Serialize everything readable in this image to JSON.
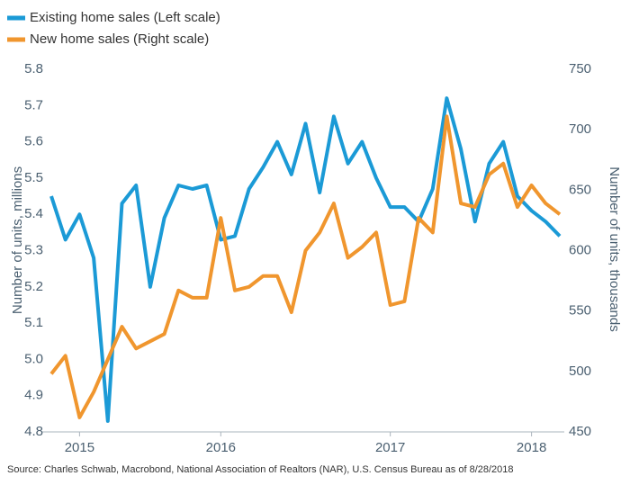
{
  "chart_data": {
    "type": "line",
    "legend_position": "top-left",
    "categories": [
      null,
      null,
      "2015",
      null,
      null,
      null,
      null,
      null,
      null,
      null,
      null,
      null,
      "2016",
      null,
      null,
      null,
      null,
      null,
      null,
      null,
      null,
      null,
      null,
      null,
      "2017",
      null,
      null,
      null,
      null,
      null,
      null,
      null,
      null,
      null,
      "2018",
      null,
      null
    ],
    "series": [
      {
        "name": "Existing home sales (Left scale)",
        "color": "#1b9ad6",
        "axis": "y",
        "values": [
          5.45,
          5.33,
          5.4,
          5.28,
          4.83,
          5.43,
          5.48,
          5.2,
          5.39,
          5.48,
          5.47,
          5.48,
          5.33,
          5.34,
          5.47,
          5.53,
          5.6,
          5.51,
          5.65,
          5.46,
          5.67,
          5.54,
          5.6,
          5.5,
          5.42,
          5.42,
          5.38,
          5.47,
          5.72,
          5.58,
          5.38,
          5.54,
          5.6,
          5.45,
          5.41,
          5.38,
          5.34
        ]
      },
      {
        "name": "New home sales (Right scale)",
        "color": "#f0962e",
        "axis": "y2",
        "values": [
          498,
          513,
          462,
          483,
          510,
          537,
          519,
          525,
          531,
          567,
          561,
          561,
          627,
          567,
          570,
          579,
          579,
          549,
          600,
          615,
          639,
          594,
          603,
          615,
          555,
          558,
          627,
          615,
          711,
          639,
          636,
          663,
          672,
          636,
          654,
          639,
          630
        ]
      }
    ],
    "ylabel": "Number of units, millions",
    "y2label": "Number of units, thousands",
    "ylim": [
      4.8,
      5.8
    ],
    "yticks": [
      4.8,
      4.9,
      {
        "value": 5.0,
        "label": "5.0"
      },
      5.1,
      5.2,
      5.3,
      5.4,
      5.5,
      5.6,
      5.7,
      5.8
    ],
    "y2lim": [
      450,
      750
    ],
    "y2ticks": [
      450,
      500,
      550,
      600,
      650,
      700,
      750
    ],
    "source": "Source: Charles Schwab, Macrobond, National Association of Realtors (NAR), U.S. Census Bureau as of 8/28/2018"
  }
}
